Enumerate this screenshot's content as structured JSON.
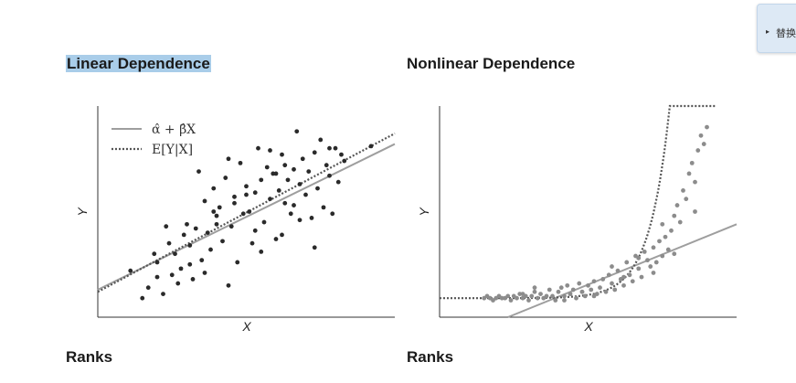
{
  "sidebar_tab": {
    "arrow": "▸",
    "label": "替换"
  },
  "headings": {
    "left": "Linear Dependence",
    "right": "Nonlinear Dependence",
    "left_bottom": "Ranks",
    "right_bottom": "Ranks"
  },
  "chart_data": [
    {
      "type": "scatter",
      "title": "Linear Dependence",
      "xlabel": "X",
      "ylabel": "Y",
      "legend": [
        {
          "label": "α̂ + β̂X",
          "style": "solid",
          "color": "#9e9e9e"
        },
        {
          "label": "E[Y|X]",
          "style": "dotted",
          "color": "#555555"
        }
      ],
      "xlim": [
        0,
        10
      ],
      "ylim": [
        0,
        10
      ],
      "lines": {
        "fit": {
          "x": [
            0,
            10
          ],
          "y": [
            1.3,
            8.2
          ]
        },
        "expectation": {
          "x": [
            0,
            10
          ],
          "y": [
            1.2,
            8.7
          ]
        }
      },
      "points_color": "#2a2a2a",
      "points": {
        "x": [
          1.1,
          1.5,
          1.7,
          1.9,
          2.0,
          2.0,
          2.2,
          2.4,
          2.5,
          2.6,
          2.7,
          2.8,
          2.9,
          3.0,
          3.1,
          3.2,
          3.3,
          3.4,
          3.5,
          3.6,
          3.7,
          3.8,
          3.9,
          4.0,
          4.1,
          4.2,
          4.3,
          4.4,
          4.5,
          4.6,
          4.7,
          4.8,
          4.9,
          5.0,
          5.1,
          5.2,
          5.3,
          5.4,
          5.5,
          5.6,
          5.7,
          5.8,
          5.9,
          6.0,
          6.1,
          6.2,
          6.3,
          6.4,
          6.5,
          6.6,
          6.7,
          6.8,
          6.9,
          7.0,
          7.1,
          7.2,
          7.3,
          7.4,
          7.5,
          7.6,
          7.7,
          7.8,
          7.9,
          8.0,
          8.1,
          8.3,
          9.2,
          2.3,
          3.1,
          3.9,
          4.4,
          5.0,
          5.5,
          6.3,
          6.8,
          7.3,
          7.8,
          4.6,
          5.3,
          6.0,
          6.6,
          3.6,
          4.0,
          8.2,
          6.2,
          5.8
        ],
        "y": [
          2.2,
          0.9,
          1.4,
          3.0,
          1.9,
          2.6,
          1.1,
          3.5,
          2.0,
          3.0,
          1.6,
          2.3,
          3.9,
          4.4,
          3.4,
          1.8,
          4.2,
          6.9,
          2.7,
          5.5,
          4.0,
          3.2,
          6.1,
          4.8,
          5.2,
          3.6,
          6.6,
          7.5,
          4.3,
          5.7,
          2.6,
          7.3,
          4.9,
          6.2,
          5.0,
          3.5,
          5.9,
          8.0,
          6.5,
          4.5,
          7.1,
          5.6,
          6.8,
          3.7,
          6.0,
          7.7,
          5.4,
          6.5,
          4.9,
          7.0,
          8.8,
          6.3,
          7.5,
          5.8,
          6.9,
          4.7,
          7.8,
          6.1,
          8.4,
          5.2,
          7.2,
          6.7,
          4.9,
          8.0,
          6.4,
          7.4,
          8.1,
          4.3,
          2.5,
          5.0,
          1.5,
          5.8,
          3.1,
          7.2,
          4.6,
          3.3,
          8.0,
          5.4,
          4.1,
          6.8,
          5.3,
          2.1,
          4.4,
          7.7,
          3.9,
          7.9
        ]
      }
    },
    {
      "type": "scatter",
      "title": "Nonlinear Dependence",
      "xlabel": "X",
      "ylabel": "Y",
      "xlim": [
        0,
        10
      ],
      "ylim": [
        0,
        10
      ],
      "lines": {
        "fit": {
          "x": [
            2.3,
            10
          ],
          "y": [
            0,
            4.4
          ]
        },
        "expectation_curve": "exponential",
        "expectation_params": {
          "base": 0.9,
          "k": 9.5e-05,
          "rate": 1.48,
          "x_end": 9.3
        }
      },
      "points_color": "#8c8c8c",
      "points": {
        "x": [
          1.5,
          1.6,
          1.7,
          1.8,
          1.9,
          2.0,
          2.1,
          2.2,
          2.3,
          2.4,
          2.5,
          2.6,
          2.7,
          2.8,
          2.9,
          3.0,
          3.1,
          3.2,
          3.3,
          3.4,
          3.5,
          3.6,
          3.7,
          3.8,
          3.9,
          4.0,
          4.1,
          4.2,
          4.3,
          4.4,
          4.5,
          4.6,
          4.7,
          4.8,
          4.9,
          5.0,
          5.1,
          5.2,
          5.3,
          5.4,
          5.5,
          5.6,
          5.7,
          5.8,
          5.9,
          6.0,
          6.1,
          6.2,
          6.3,
          6.4,
          6.5,
          6.6,
          6.7,
          6.8,
          6.9,
          7.0,
          7.1,
          7.2,
          7.3,
          7.4,
          7.5,
          7.6,
          7.7,
          7.8,
          7.9,
          8.0,
          8.1,
          8.2,
          8.3,
          8.4,
          8.5,
          8.6,
          8.7,
          8.8,
          8.9,
          9.0,
          3.2,
          4.2,
          5.2,
          6.2,
          7.2,
          7.9,
          8.6,
          2.8,
          4.8,
          5.8,
          6.7,
          7.5
        ],
        "y": [
          0.9,
          1.0,
          0.9,
          0.8,
          0.9,
          1.0,
          0.9,
          0.9,
          1.0,
          0.8,
          1.0,
          0.9,
          1.1,
          0.9,
          1.0,
          0.8,
          1.0,
          1.2,
          0.9,
          1.1,
          0.9,
          1.0,
          1.3,
          1.0,
          0.8,
          1.2,
          1.4,
          1.0,
          1.5,
          1.1,
          1.3,
          0.9,
          1.6,
          1.2,
          1.0,
          1.5,
          1.3,
          1.7,
          1.1,
          1.4,
          1.8,
          1.2,
          2.0,
          1.6,
          1.3,
          2.2,
          1.8,
          1.5,
          2.6,
          2.0,
          1.7,
          2.9,
          2.3,
          1.9,
          3.1,
          2.7,
          2.4,
          3.3,
          2.6,
          3.6,
          2.9,
          3.8,
          3.2,
          4.1,
          4.8,
          5.3,
          4.5,
          6.0,
          5.6,
          6.8,
          7.3,
          6.4,
          7.9,
          8.6,
          8.2,
          9.0,
          1.4,
          0.8,
          1.0,
          1.9,
          2.1,
          3.0,
          5.0,
          1.1,
          1.2,
          2.4,
          2.8,
          4.4
        ]
      }
    }
  ]
}
